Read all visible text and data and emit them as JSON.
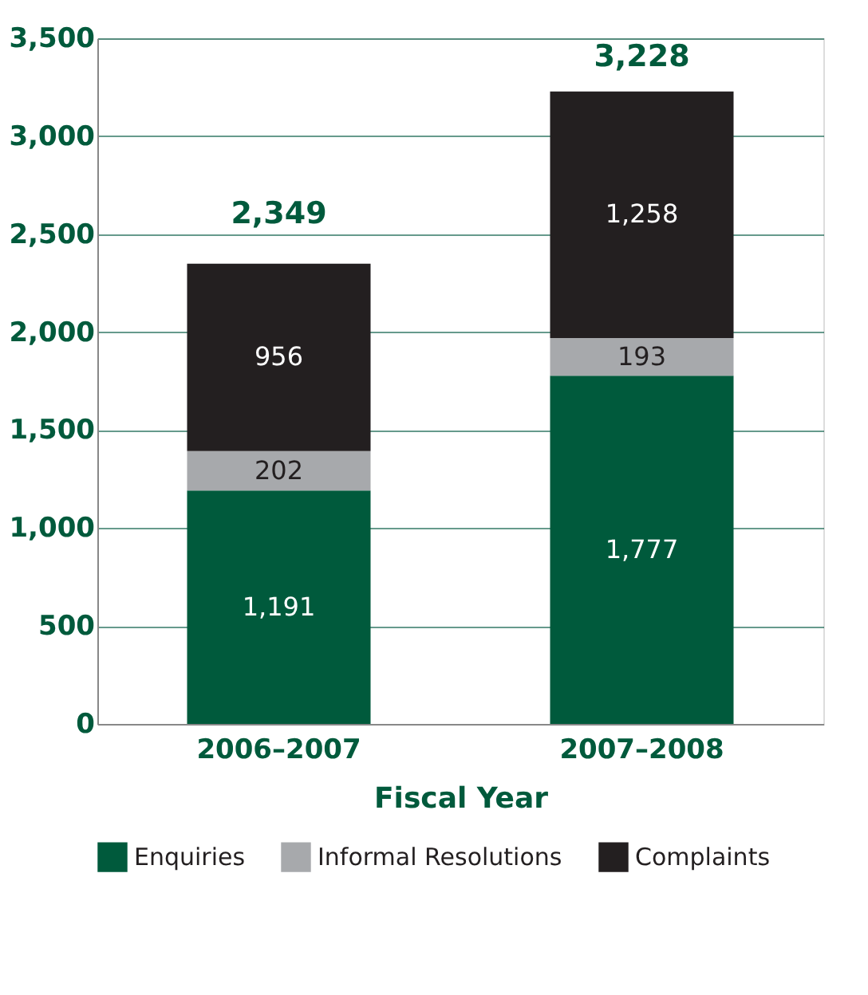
{
  "chart_data": {
    "type": "bar",
    "stacked": true,
    "xlabel": "Fiscal Year",
    "categories": [
      "2006–2007",
      "2007–2008"
    ],
    "series": [
      {
        "name": "Enquiries",
        "color": "#005a3c",
        "values": [
          1191,
          1777
        ],
        "value_labels": [
          "1,191",
          "1,777"
        ]
      },
      {
        "name": "Informal Resolutions",
        "color": "#a7a9ac",
        "values": [
          202,
          193
        ],
        "value_labels": [
          "202",
          "193"
        ]
      },
      {
        "name": "Complaints",
        "color": "#231f20",
        "values": [
          956,
          1258
        ],
        "value_labels": [
          "956",
          "1,258"
        ]
      }
    ],
    "totals": [
      "2,349",
      "3,228"
    ],
    "ylim": [
      0,
      3500
    ],
    "yticks": [
      0,
      500,
      {
        "value": 1000,
        "label": "1,000"
      },
      {
        "value": 1500,
        "label": "1,500"
      },
      {
        "value": 2000,
        "label": "2,000"
      },
      {
        "value": 2500,
        "label": "2,500"
      },
      {
        "value": 3000,
        "label": "3,000"
      },
      {
        "value": 3500,
        "label": "3,500"
      }
    ],
    "grid": "y",
    "legend": "bottom"
  }
}
